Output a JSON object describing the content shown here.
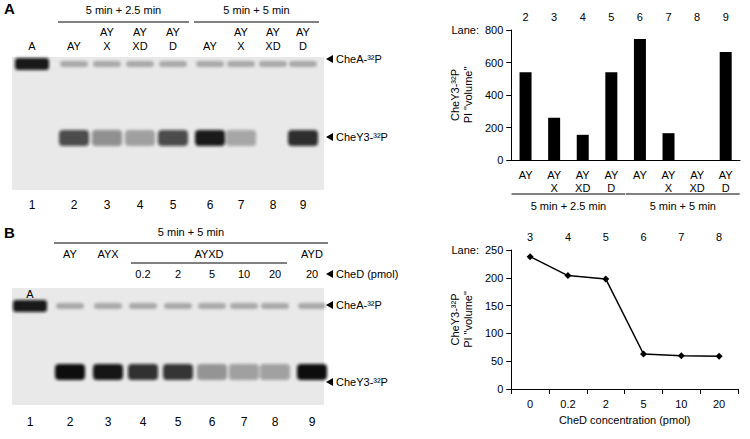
{
  "gels": [
    {
      "panel": "A",
      "groups": [
        {
          "label": "5 min + 2.5 min",
          "lanes": [
            2,
            3,
            4,
            5
          ]
        },
        {
          "label": "5 min + 5 min",
          "lanes": [
            6,
            7,
            8,
            9
          ]
        }
      ],
      "lanes": [
        1,
        2,
        3,
        4,
        5,
        6,
        7,
        8,
        9
      ],
      "lane_labels": [
        "A",
        "AY",
        "AY\nX",
        "AY\nXD",
        "AY\nD",
        "AY",
        "AY\nX",
        "AY\nXD",
        "AY\nD"
      ],
      "bands": [
        "CheA-³²P",
        "CheY3-³²P"
      ]
    },
    {
      "panel": "B",
      "groups": [
        {
          "label": "5 min + 5 min",
          "lanes": [
            2,
            3,
            4,
            5,
            6,
            7,
            8,
            9
          ]
        }
      ],
      "lanes": [
        1,
        2,
        3,
        4,
        5,
        6,
        7,
        8,
        9
      ],
      "lane_labels": [
        "A",
        "AY",
        "AYX",
        null,
        null,
        null,
        null,
        null,
        "AYD"
      ],
      "spanning_labels": [
        {
          "label": "AYXD",
          "lanes": [
            4,
            5,
            6,
            7,
            8
          ]
        }
      ],
      "ched_label": "CheD (pmol)",
      "ched": [
        null,
        null,
        null,
        0.2,
        2,
        5,
        10,
        20,
        20
      ],
      "bands": [
        "CheA-³²P",
        "CheY3-³²P"
      ]
    }
  ],
  "chart_data": [
    {
      "type": "bar",
      "lane_label": "Lane:",
      "lanes": [
        2,
        3,
        4,
        5,
        6,
        7,
        8,
        9
      ],
      "categories": [
        "AY",
        "AY\nX",
        "AY\nXD",
        "AY\nD",
        "AY",
        "AY\nX",
        "AY\nXD",
        "AY\nD"
      ],
      "values": [
        540,
        260,
        155,
        540,
        745,
        165,
        0,
        665
      ],
      "groups": [
        {
          "label": "5 min + 2.5 min",
          "lanes": [
            2,
            3,
            4,
            5
          ]
        },
        {
          "label": "5 min + 5 min",
          "lanes": [
            6,
            7,
            8,
            9
          ]
        }
      ],
      "color": "#000000",
      "ylabel": "CheY3-³²P\nPI \"volume\"",
      "ylim": [
        0,
        800
      ],
      "yticks": [
        0,
        200,
        400,
        600,
        800
      ],
      "grid": false
    },
    {
      "type": "line",
      "lane_label": "Lane:",
      "lanes": [
        3,
        4,
        5,
        6,
        7,
        8
      ],
      "categories": [
        "0",
        "0.2",
        "2",
        "5",
        "10",
        "20"
      ],
      "values": [
        238,
        204,
        198,
        63,
        60,
        59
      ],
      "color": "#000000",
      "marker": "diamond",
      "line_style": "solid",
      "xlabel": "CheD concentration (pmol)",
      "ylabel": "CheY3-³²P\nPI \"volume\"",
      "ylim": [
        0,
        250
      ],
      "yticks": [
        0,
        50,
        100,
        150,
        200,
        250
      ],
      "grid": false
    }
  ]
}
